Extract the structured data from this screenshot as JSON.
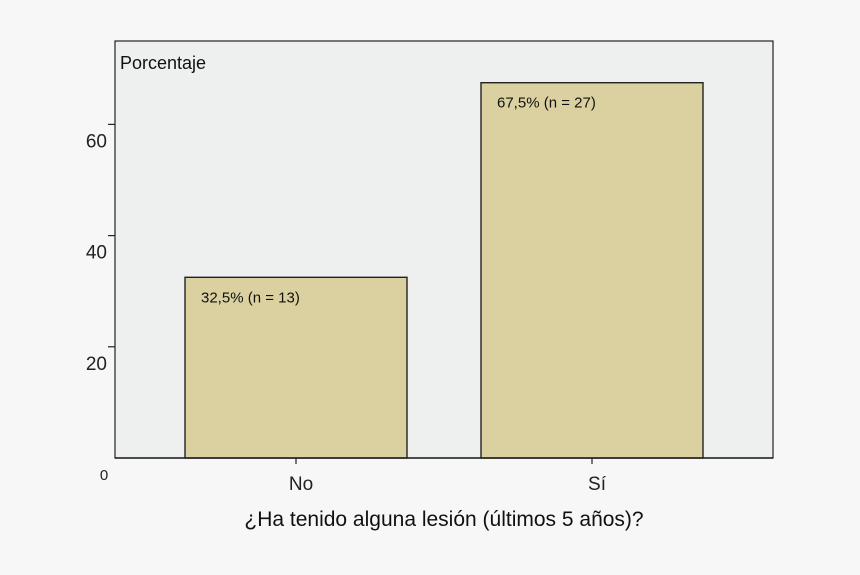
{
  "chart_data": {
    "type": "bar",
    "categories": [
      "No",
      "Sí"
    ],
    "values": [
      32.5,
      67.5
    ],
    "bar_labels": [
      "32,5% (n = 13)",
      "67,5% (n = 27)"
    ],
    "title": "",
    "xlabel": "¿Ha tenido alguna lesión (últimos 5 años)?",
    "ylabel": "Porcentaje",
    "ylim": [
      0,
      75
    ],
    "yticks": [
      20,
      40,
      60
    ],
    "yticks_labels": [
      "20",
      "40",
      "60"
    ],
    "zero_label": "0",
    "grid": false,
    "bar_color": "#dbd1a0",
    "plot_background": "#eef0ef"
  }
}
